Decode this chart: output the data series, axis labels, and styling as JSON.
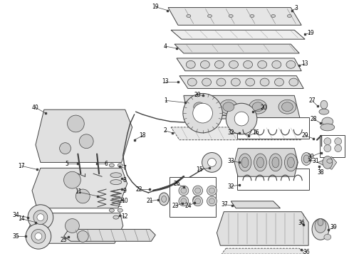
{
  "background_color": "#ffffff",
  "line_color": "#404040",
  "text_color": "#000000",
  "fig_width": 4.9,
  "fig_height": 3.6,
  "dpi": 100,
  "label_fontsize": 5.5,
  "lw": 0.7
}
